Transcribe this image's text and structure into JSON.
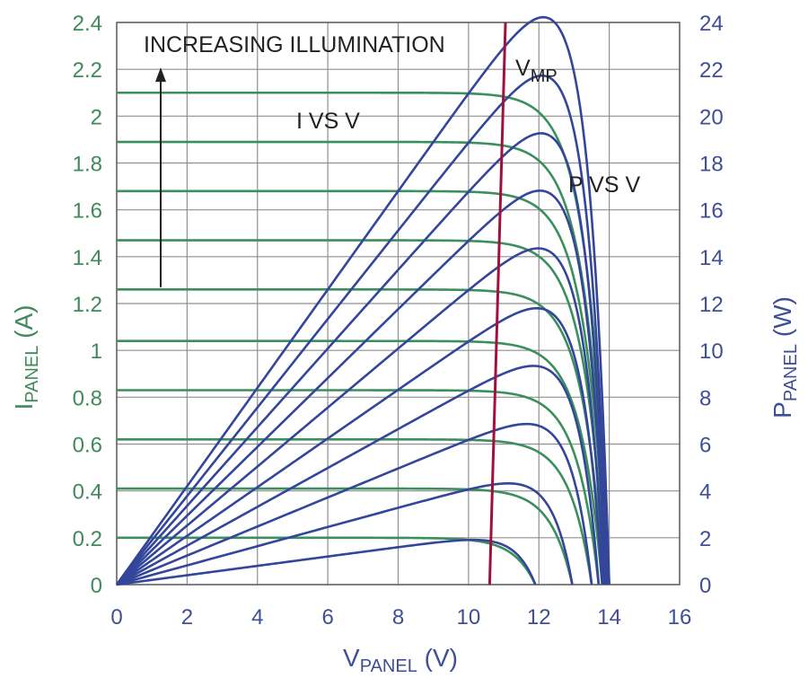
{
  "chart_data": {
    "type": "line",
    "x_axis": {
      "label_main": "V",
      "label_sub": "PANEL",
      "label_unit": " (V)",
      "range": [
        0,
        16
      ],
      "ticks": [
        0,
        2,
        4,
        6,
        8,
        10,
        12,
        14,
        16
      ],
      "tick_labels": [
        "0",
        "2",
        "4",
        "6",
        "8",
        "10",
        "12",
        "14",
        "16"
      ]
    },
    "y_left": {
      "label_main": "I",
      "label_sub": "PANEL",
      "label_unit": " (A)",
      "range": [
        0,
        2.4
      ],
      "ticks": [
        0,
        0.2,
        0.4,
        0.6,
        0.8,
        1.0,
        1.2,
        1.4,
        1.6,
        1.8,
        2.0,
        2.2,
        2.4
      ],
      "tick_labels": [
        "0",
        "0.2",
        "0.4",
        "0.6",
        "0.8",
        "1",
        "1.2",
        "1.4",
        "1.6",
        "1.8",
        "2",
        "2.2",
        "2.4"
      ]
    },
    "y_right": {
      "label_main": "P",
      "label_sub": "PANEL",
      "label_unit": " (W)",
      "range": [
        0,
        24
      ],
      "ticks": [
        0,
        2,
        4,
        6,
        8,
        10,
        12,
        14,
        16,
        18,
        20,
        22,
        24
      ],
      "tick_labels": [
        "0",
        "2",
        "4",
        "6",
        "8",
        "10",
        "12",
        "14",
        "16",
        "18",
        "20",
        "22",
        "24"
      ]
    },
    "grid": true,
    "annotations": {
      "increasing_illumination": "INCREASING ILLUMINATION",
      "i_vs_v": "I VS V",
      "p_vs_v": "P VS V",
      "vmp_main": "V",
      "vmp_sub": "MP"
    },
    "curve_model": "I = Isc * (1 - exp((V - Voc) / Vt)), P = V * I",
    "iv_series": [
      {
        "Isc": 0.2,
        "Voc": 11.9,
        "Vt": 0.62
      },
      {
        "Isc": 0.41,
        "Voc": 12.95,
        "Vt": 0.62
      },
      {
        "Isc": 0.62,
        "Voc": 13.5,
        "Vt": 0.62
      },
      {
        "Isc": 0.83,
        "Voc": 13.7,
        "Vt": 0.62
      },
      {
        "Isc": 1.04,
        "Voc": 13.8,
        "Vt": 0.62
      },
      {
        "Isc": 1.26,
        "Voc": 13.85,
        "Vt": 0.62
      },
      {
        "Isc": 1.47,
        "Voc": 13.9,
        "Vt": 0.62
      },
      {
        "Isc": 1.68,
        "Voc": 13.93,
        "Vt": 0.62
      },
      {
        "Isc": 1.89,
        "Voc": 13.96,
        "Vt": 0.62
      },
      {
        "Isc": 2.1,
        "Voc": 14.0,
        "Vt": 0.62
      }
    ],
    "vmp_line": {
      "x": [
        10.6,
        11.05
      ],
      "y_right": [
        0,
        24
      ]
    },
    "illumination_arrow": {
      "x": 1.25,
      "y_left": [
        1.27,
        2.2
      ]
    },
    "colors": {
      "iv_curve": "#3a8f5c",
      "pv_curve": "#33469a",
      "vmp_line": "#a0123c",
      "grid": "#8f8f8f",
      "left_axis_text": "#3f8a5a",
      "right_axis_text": "#3f4f96",
      "annotation_text": "#222222"
    }
  }
}
